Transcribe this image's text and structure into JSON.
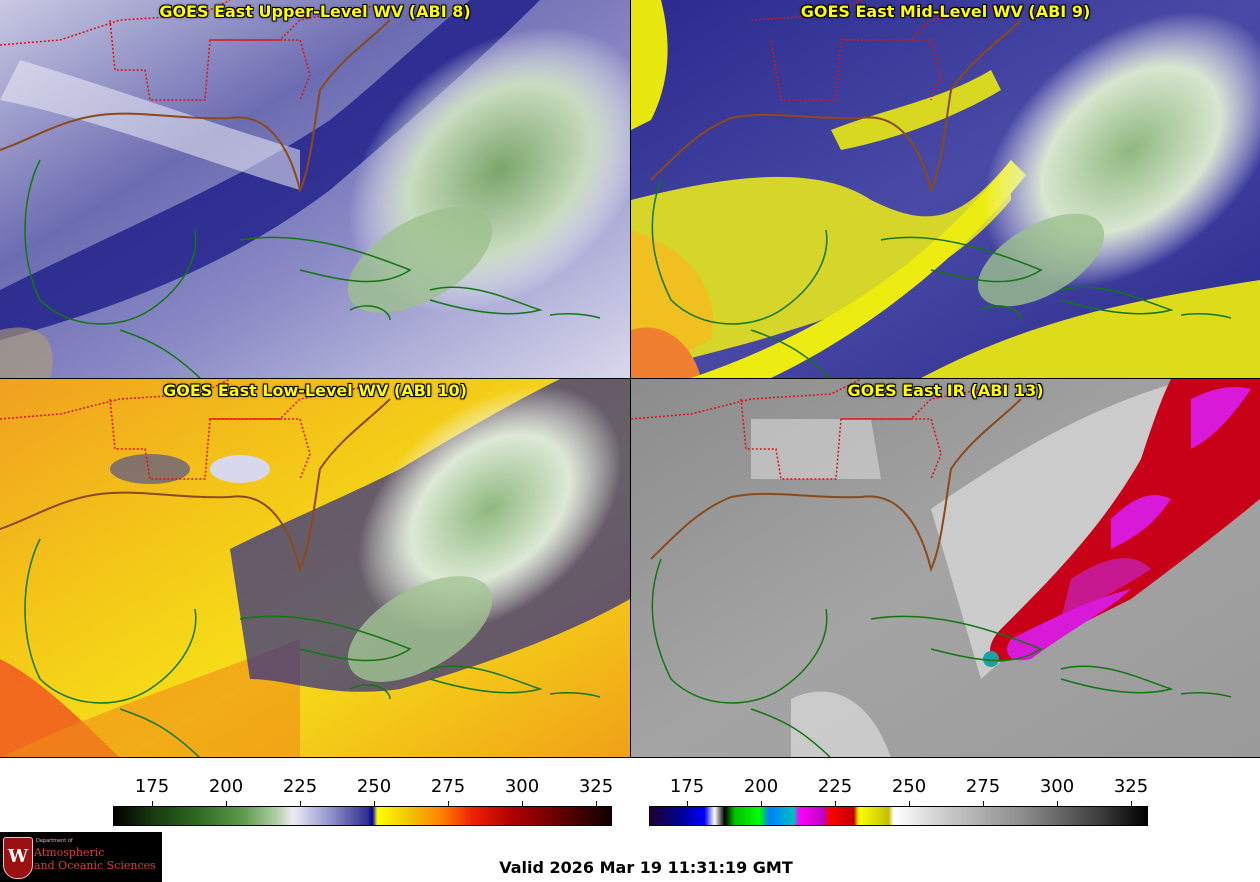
{
  "panels": [
    {
      "title": "GOES East Upper-Level WV (ABI 8)",
      "palette": "wv-upper"
    },
    {
      "title": "GOES East Mid-Level WV (ABI 9)",
      "palette": "wv-mid"
    },
    {
      "title": "GOES East Low-Level WV (ABI 10)",
      "palette": "wv-low"
    },
    {
      "title": "GOES East IR (ABI 13)",
      "palette": "ir"
    }
  ],
  "colorbars": {
    "wv": {
      "ticks": [
        "175",
        "200",
        "225",
        "250",
        "275",
        "300",
        "325"
      ]
    },
    "ir": {
      "ticks": [
        "175",
        "200",
        "225",
        "250",
        "275",
        "300",
        "325"
      ]
    }
  },
  "logo": {
    "seal_letter": "W",
    "dept_line": "Department of",
    "line1": "Atmospheric",
    "line2": "and Oceanic Sciences"
  },
  "valid_time": "Valid 2026 Mar 19 11:31:19 GMT",
  "colors": {
    "state_borders": "#e01010",
    "coastlines": "#117711",
    "title_text": "#ffff00",
    "us_coast": "#8a4a1a"
  }
}
